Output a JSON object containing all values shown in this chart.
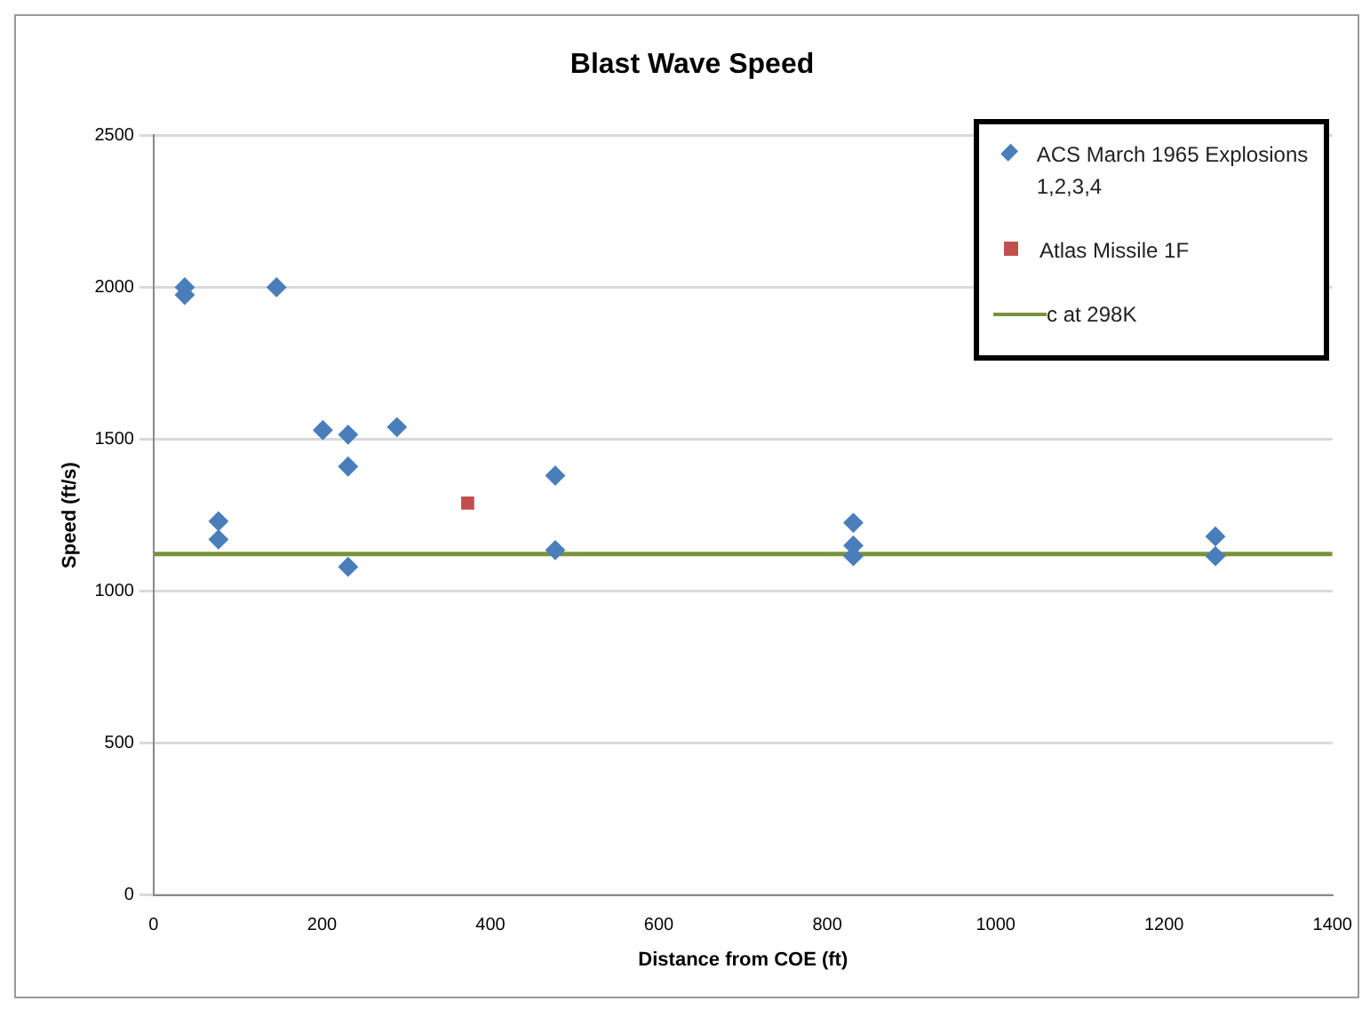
{
  "chart_data": {
    "type": "scatter",
    "title": "Blast Wave Speed",
    "xlabel": "Distance from COE (ft)",
    "ylabel": "Speed (ft/s)",
    "xlim": [
      0,
      1400
    ],
    "xticks": [
      0,
      200,
      400,
      600,
      800,
      1000,
      1200,
      1400
    ],
    "ylim": [
      0,
      2500
    ],
    "yticks": [
      0,
      500,
      1000,
      1500,
      2000,
      2500
    ],
    "grid": "y",
    "legend": "top right",
    "series": [
      {
        "name": "ACS March 1965 Explosions 1,2,3,4",
        "color": "#4a7ebb",
        "marker": "diamond",
        "x": [
          37,
          37,
          146,
          77,
          77,
          201,
          231,
          231,
          231,
          289,
          477,
          477,
          831,
          831,
          831,
          1261,
          1261
        ],
        "values": [
          2000,
          1975,
          2000,
          1230,
          1170,
          1530,
          1515,
          1410,
          1080,
          1540,
          1380,
          1135,
          1225,
          1150,
          1115,
          1180,
          1115
        ]
      },
      {
        "name": "Atlas Missile 1F",
        "color": "#c0504d",
        "marker": "square",
        "x": [
          373
        ],
        "values": [
          1290
        ]
      },
      {
        "name": "c at 298K",
        "type": "line",
        "color": "#77933c",
        "marker": "none",
        "x": [
          0,
          1400
        ],
        "values": [
          1122,
          1122
        ]
      }
    ]
  }
}
